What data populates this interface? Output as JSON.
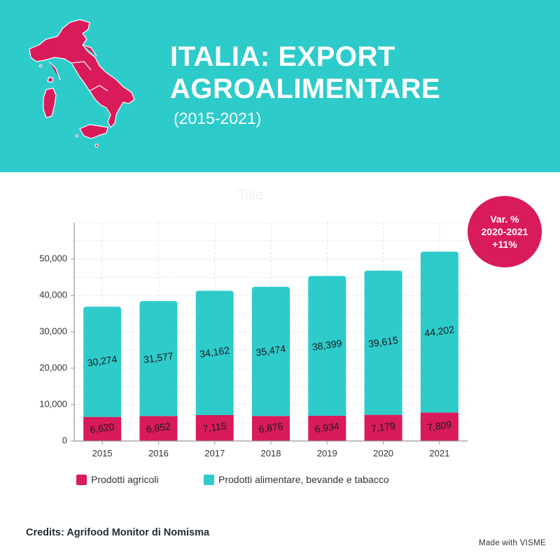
{
  "header": {
    "title_line1": "ITALIA: EXPORT",
    "title_line2": "AGROALIMENTARE",
    "subtitle": "(2015-2021)",
    "map_icon": "italy-map-icon"
  },
  "badge": {
    "line1": "Var. %",
    "line2": "2020-2021",
    "line3": "+11%"
  },
  "chart_data": {
    "type": "bar",
    "stacked": true,
    "title": "Title",
    "categories": [
      "2015",
      "2016",
      "2017",
      "2018",
      "2019",
      "2020",
      "2021"
    ],
    "series": [
      {
        "name": "Prodotti agricoli",
        "color": "#d91a5b",
        "values": [
          6620,
          6852,
          7115,
          6876,
          6934,
          7179,
          7809
        ]
      },
      {
        "name": "Prodotti alimentare, bevande e tabacco",
        "color": "#2ecbcb",
        "values": [
          30274,
          31577,
          34162,
          35474,
          38399,
          39615,
          44202
        ]
      }
    ],
    "yticks": [
      0,
      10000,
      20000,
      30000,
      40000,
      50000
    ],
    "ylim": [
      0,
      60000
    ],
    "grid": true,
    "legend": "bottom"
  },
  "legend": {
    "items": [
      {
        "label": "Prodotti agricoli",
        "color": "#d91a5b"
      },
      {
        "label": "Prodotti alimentare, bevande e tabacco",
        "color": "#2ecbcb"
      }
    ]
  },
  "footer": {
    "credits": "Credits: Agrifood Monitor di Nomisma",
    "madewith": "Made with VISME"
  }
}
